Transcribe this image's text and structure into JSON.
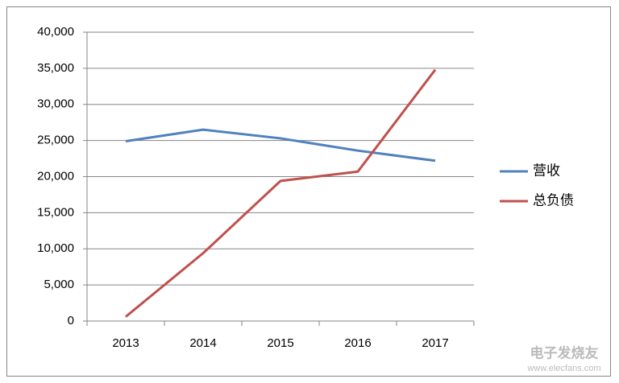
{
  "chart_data": {
    "type": "line",
    "categories": [
      "2013",
      "2014",
      "2015",
      "2016",
      "2017"
    ],
    "series": [
      {
        "name": "营收",
        "color": "#4f81bd",
        "values": [
          24900,
          26500,
          25300,
          23600,
          22200
        ]
      },
      {
        "name": "总负债",
        "color": "#c0504d",
        "values": [
          600,
          9400,
          19400,
          20700,
          34800
        ]
      }
    ],
    "ylim": [
      0,
      40000
    ],
    "yticks": [
      0,
      {
        "value": 5000,
        "label": "5,000"
      },
      {
        "value": 10000,
        "label": "10,000"
      },
      {
        "value": 15000,
        "label": "15,000"
      },
      {
        "value": 20000,
        "label": "20,000"
      },
      {
        "value": 25000,
        "label": "25,000"
      },
      {
        "value": 30000,
        "label": "30,000"
      },
      {
        "value": 35000,
        "label": "35,000"
      },
      {
        "value": 40000,
        "label": "40,000"
      }
    ],
    "grid": true,
    "legend": "right"
  },
  "watermark": {
    "brand": "电子发烧友",
    "url": "www.elecfans.com"
  }
}
